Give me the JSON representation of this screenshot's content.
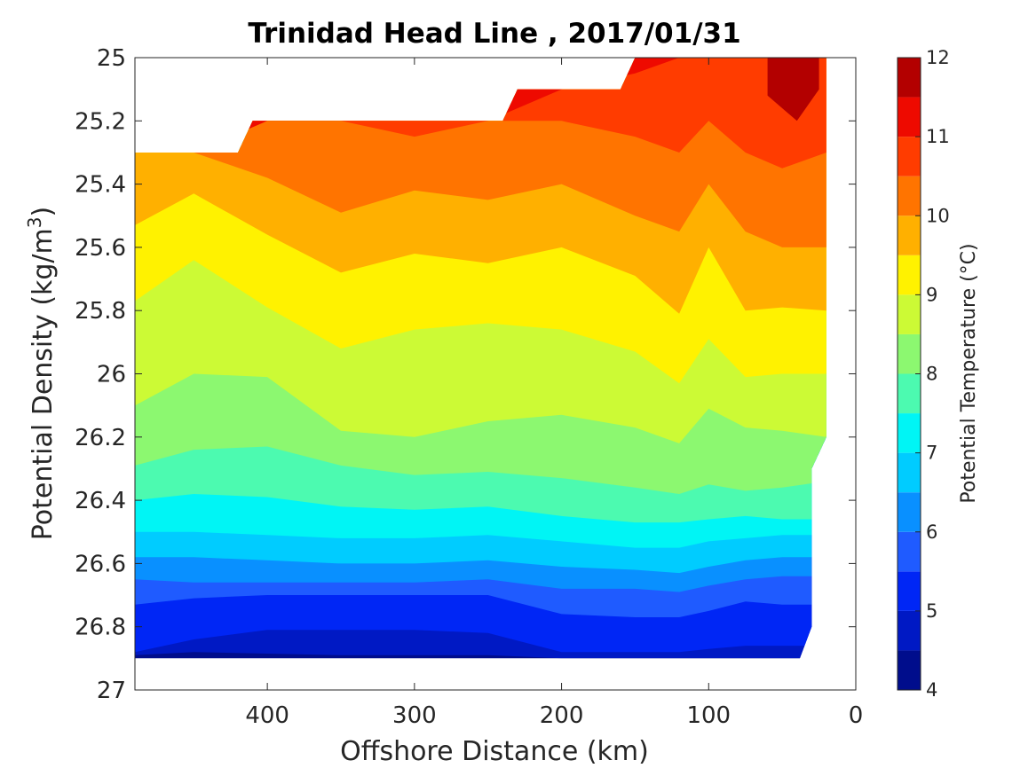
{
  "chart_data": {
    "type": "contourf",
    "title": "Trinidad Head Line , 2017/01/31",
    "xlabel": "Offshore Distance (km)",
    "ylabel": "Potential Density (kg/m",
    "ylabel_sup": "3",
    "ylabel_close": ")",
    "xlim": [
      490,
      0
    ],
    "ylim": [
      25,
      27
    ],
    "y_reversed": true,
    "x_reversed": true,
    "xticks": [
      400,
      300,
      200,
      100,
      0
    ],
    "yticks": [
      "25",
      "25.2",
      "25.4",
      "25.6",
      "25.8",
      "26",
      "26.2",
      "26.4",
      "26.6",
      "26.8",
      "27"
    ],
    "yticks_values": [
      25,
      25.2,
      25.4,
      25.6,
      25.8,
      26,
      26.2,
      26.4,
      26.6,
      26.8,
      27
    ],
    "colorbar": {
      "label": "Potential Temperature (°C)",
      "range": [
        4,
        12
      ],
      "ticks": [
        "4",
        "5",
        "6",
        "7",
        "8",
        "9",
        "10",
        "11",
        "12"
      ],
      "tick_values": [
        4,
        5,
        6,
        7,
        8,
        9,
        10,
        11,
        12
      ],
      "levels": [
        4,
        4.5,
        5,
        5.5,
        6,
        6.5,
        7,
        7.5,
        8,
        8.5,
        9,
        9.5,
        10,
        10.5,
        11,
        11.5,
        12
      ],
      "colors": [
        "#000d8c",
        "#0019c4",
        "#0026f5",
        "#1f5bff",
        "#0990ff",
        "#00ccff",
        "#00f5f5",
        "#4cfab0",
        "#8cf870",
        "#ccfa35",
        "#fff200",
        "#ffb000",
        "#ff7400",
        "#ff3c00",
        "#ee0a00",
        "#b30000"
      ]
    },
    "data_region": {
      "x_km": [
        490,
        420,
        410,
        240,
        230,
        160,
        150,
        20,
        20,
        30,
        30,
        38,
        210,
        490
      ],
      "density": [
        25.3,
        25.3,
        25.2,
        25.2,
        25.1,
        25.1,
        25.0,
        25.0,
        26.2,
        26.3,
        26.8,
        26.9,
        26.9,
        26.9
      ]
    },
    "isotherms": {
      "x_km": [
        490,
        450,
        400,
        350,
        300,
        250,
        200,
        150,
        120,
        100,
        75,
        50,
        20
      ],
      "contours": [
        {
          "level": 4.5,
          "density": [
            26.89,
            26.88,
            26.885,
            26.89,
            26.89,
            26.89,
            26.9,
            26.9,
            26.9,
            26.9,
            26.9,
            26.9,
            26.9
          ]
        },
        {
          "level": 5.0,
          "density": [
            26.88,
            26.84,
            26.81,
            26.81,
            26.81,
            26.82,
            26.88,
            26.88,
            26.88,
            26.87,
            26.86,
            26.86,
            26.86
          ]
        },
        {
          "level": 5.5,
          "density": [
            26.73,
            26.71,
            26.7,
            26.7,
            26.7,
            26.7,
            26.76,
            26.77,
            26.77,
            26.75,
            26.72,
            26.73,
            26.73
          ]
        },
        {
          "level": 6.0,
          "density": [
            26.65,
            26.66,
            26.66,
            26.66,
            26.66,
            26.65,
            26.68,
            26.68,
            26.69,
            26.67,
            26.65,
            26.64,
            26.64
          ]
        },
        {
          "level": 6.5,
          "density": [
            26.58,
            26.58,
            26.59,
            26.6,
            26.6,
            26.59,
            26.61,
            26.62,
            26.63,
            26.61,
            26.59,
            26.58,
            26.58
          ]
        },
        {
          "level": 7.0,
          "density": [
            26.5,
            26.5,
            26.51,
            26.52,
            26.52,
            26.51,
            26.53,
            26.55,
            26.55,
            26.53,
            26.52,
            26.51,
            26.51
          ]
        },
        {
          "level": 7.5,
          "density": [
            26.4,
            26.38,
            26.39,
            26.42,
            26.43,
            26.42,
            26.45,
            26.47,
            26.47,
            26.46,
            26.45,
            26.46,
            26.46
          ]
        },
        {
          "level": 8.0,
          "density": [
            26.29,
            26.24,
            26.23,
            26.29,
            26.32,
            26.31,
            26.33,
            26.36,
            26.38,
            26.35,
            26.37,
            26.36,
            26.34
          ]
        },
        {
          "level": 8.5,
          "density": [
            26.1,
            26.0,
            26.01,
            26.18,
            26.2,
            26.15,
            26.13,
            26.17,
            26.22,
            26.11,
            26.17,
            26.18,
            26.2
          ]
        },
        {
          "level": 9.0,
          "density": [
            25.77,
            25.64,
            25.79,
            25.92,
            25.86,
            25.84,
            25.86,
            25.93,
            26.03,
            25.89,
            26.01,
            26.0,
            26.0
          ]
        },
        {
          "level": 9.5,
          "density": [
            25.53,
            25.43,
            25.56,
            25.68,
            25.62,
            25.65,
            25.6,
            25.69,
            25.81,
            25.6,
            25.8,
            25.79,
            25.8
          ]
        },
        {
          "level": 10.0,
          "density": [
            25.3,
            25.3,
            25.38,
            25.49,
            25.42,
            25.45,
            25.4,
            25.5,
            25.55,
            25.4,
            25.55,
            25.6,
            25.6
          ]
        },
        {
          "level": 10.5,
          "density": [
            25.3,
            25.3,
            25.2,
            25.2,
            25.25,
            25.2,
            25.2,
            25.25,
            25.3,
            25.2,
            25.3,
            25.35,
            25.3
          ]
        },
        {
          "level": 11.0,
          "density": [
            25.3,
            25.3,
            25.2,
            25.2,
            25.2,
            25.2,
            25.1,
            25.05,
            25.0,
            25.0,
            25.0,
            25.0,
            25.0
          ]
        }
      ]
    }
  }
}
